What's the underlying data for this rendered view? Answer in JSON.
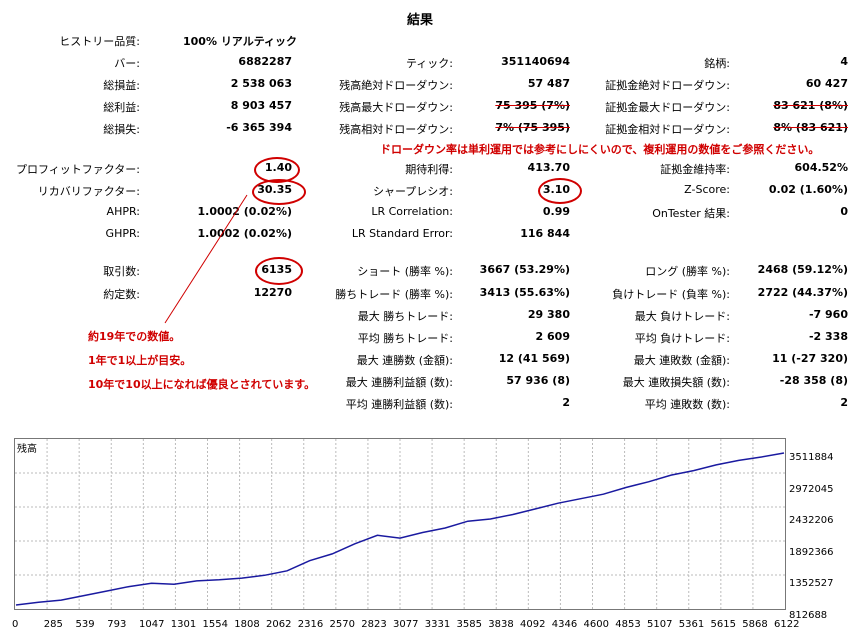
{
  "title": "結果",
  "rows": [
    [
      {
        "label": "ヒストリー品質:",
        "value": "100% リアルティック",
        "left": true
      }
    ],
    [
      {
        "label": "バー:",
        "value": "6882287"
      },
      {
        "label": "ティック:",
        "value": "351140694"
      },
      {
        "label": "銘柄:",
        "value": "4"
      }
    ],
    [
      {
        "label": "総損益:",
        "value": "2 538 063"
      },
      {
        "label": "残高絶対ドローダウン:",
        "value": "57 487"
      },
      {
        "label": "証拠金絶対ドローダウン:",
        "value": "60 427"
      }
    ],
    [
      {
        "label": "総利益:",
        "value": "8 903 457"
      },
      {
        "label": "残高最大ドローダウン:",
        "value": "75 395 (7%)",
        "strike": true
      },
      {
        "label": "証拠金最大ドローダウン:",
        "value": "83 621 (8%)",
        "strike": true
      }
    ],
    [
      {
        "label": "総損失:",
        "value": "-6 365 394"
      },
      {
        "label": "残高相対ドローダウン:",
        "value": "7% (75 395)",
        "strike": true
      },
      {
        "label": "証拠金相対ドローダウン:",
        "value": "8% (83 621)",
        "strike": true
      }
    ],
    [
      {
        "label": "プロフィットファクター:",
        "value": "1.40"
      },
      {
        "label": "期待利得:",
        "value": "413.70"
      },
      {
        "label": "証拠金維持率:",
        "value": "604.52%"
      }
    ],
    [
      {
        "label": "リカバリファクター:",
        "value": "30.35"
      },
      {
        "label": "シャープレシオ:",
        "value": "3.10"
      },
      {
        "label": "Z-Score:",
        "value": "0.02 (1.60%)"
      }
    ],
    [
      {
        "label": "AHPR:",
        "value": "1.0002 (0.02%)"
      },
      {
        "label": "LR Correlation:",
        "value": "0.99"
      },
      {
        "label": "OnTester 結果:",
        "value": "0"
      }
    ],
    [
      {
        "label": "GHPR:",
        "value": "1.0002 (0.02%)"
      },
      {
        "label": "LR Standard Error:",
        "value": "116 844"
      }
    ],
    [
      {
        "label": "取引数:",
        "value": "6135"
      },
      {
        "label": "ショート (勝率 %):",
        "value": "3667 (53.29%)"
      },
      {
        "label": "ロング (勝率 %):",
        "value": "2468 (59.12%)"
      }
    ],
    [
      {
        "label": "約定数:",
        "value": "12270"
      },
      {
        "label": "勝ちトレード (勝率 %):",
        "value": "3413 (55.63%)"
      },
      {
        "label": "負けトレード (負率 %):",
        "value": "2722 (44.37%)"
      }
    ],
    [
      {
        "label": "最大 勝ちトレード:",
        "value": "29 380"
      },
      {
        "label": "最大 負けトレード:",
        "value": "-7 960"
      }
    ],
    [
      {
        "label": "平均 勝ちトレード:",
        "value": "2 609"
      },
      {
        "label": "平均 負けトレード:",
        "value": "-2 338"
      }
    ],
    [
      {
        "label": "最大 連勝数 (金額):",
        "value": "12 (41 569)"
      },
      {
        "label": "最大 連敗数 (金額):",
        "value": "11 (-27 320)"
      }
    ],
    [
      {
        "label": "最大 連勝利益額 (数):",
        "value": "57 936 (8)"
      },
      {
        "label": "最大 連敗損失額 (数):",
        "value": "-28 358 (8)"
      }
    ],
    [
      {
        "label": "平均 連勝利益額 (数):",
        "value": "2"
      },
      {
        "label": "平均 連敗数 (数):",
        "value": "2"
      }
    ]
  ],
  "annotations": {
    "drawdown_note": "ドローダウン率は単利運用では参考にしにくいので、複利運用の数値をご参照ください。",
    "note1": "約19年での数値。",
    "note2": "1年で1以上が目安。",
    "note3": "10年で10以上になれば優良とされています。"
  },
  "colors": {
    "annotation": "#d00000",
    "balance_line": "#1a1aa0"
  },
  "chart_data": {
    "type": "line",
    "title": "残高",
    "series": [
      {
        "name": "残高",
        "values": [
          812688,
          860000,
          900000,
          980000,
          1060000,
          1140000,
          1200000,
          1180000,
          1240000,
          1260000,
          1290000,
          1340000,
          1420000,
          1600000,
          1720000,
          1900000,
          2050000,
          2000000,
          2100000,
          2180000,
          2300000,
          2340000,
          2420000,
          2520000,
          2620000,
          2700000,
          2780000,
          2900000,
          3000000,
          3120000,
          3200000,
          3300000,
          3380000,
          3440000,
          3511884
        ]
      }
    ],
    "x_ticks": [
      "0",
      "285",
      "539",
      "793",
      "1047",
      "1301",
      "1554",
      "1808",
      "2062",
      "2316",
      "2570",
      "2823",
      "3077",
      "3331",
      "3585",
      "3838",
      "4092",
      "4346",
      "4600",
      "4853",
      "5107",
      "5361",
      "5615",
      "5868",
      "6122"
    ],
    "y_ticks": [
      "3511884",
      "2972045",
      "2432206",
      "1892366",
      "1352527",
      "812688"
    ],
    "ylim": [
      812688,
      3511884
    ],
    "grid": true
  }
}
